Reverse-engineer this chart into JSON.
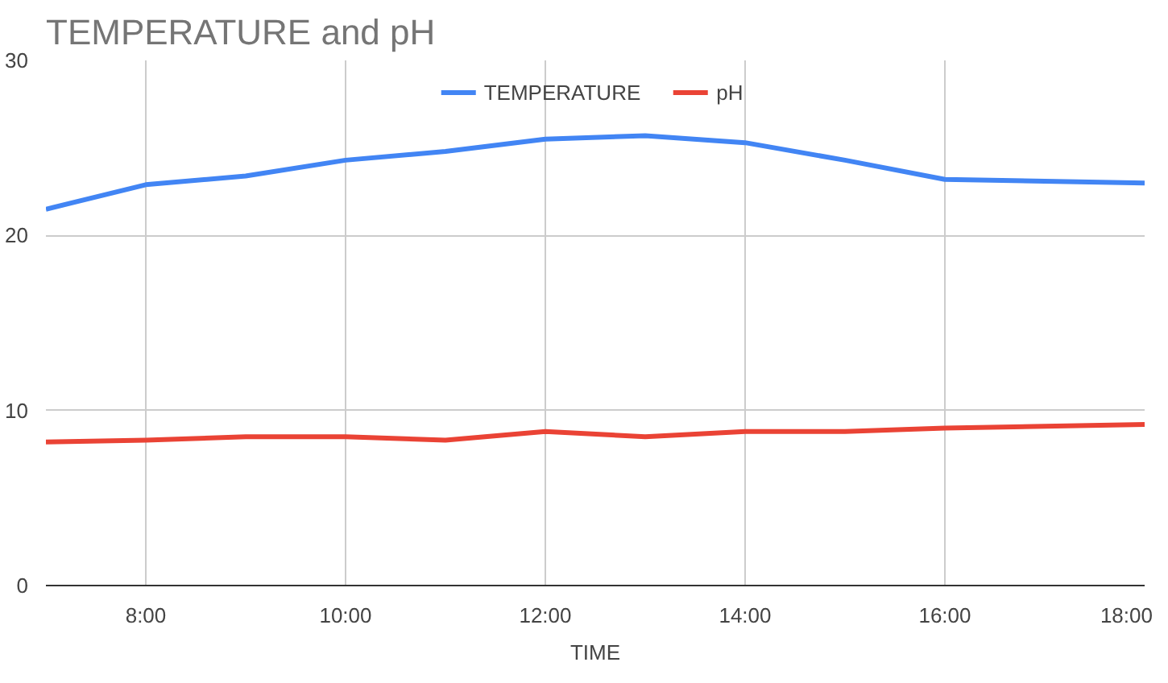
{
  "chart_data": {
    "type": "line",
    "title": "TEMPERATURE and pH",
    "xlabel": "TIME",
    "x": [
      7,
      8,
      9,
      10,
      11,
      12,
      13,
      14,
      15,
      16,
      17,
      18
    ],
    "series": [
      {
        "name": "TEMPERATURE",
        "color": "#4285f4",
        "values": [
          21.5,
          22.9,
          23.4,
          24.3,
          24.8,
          25.5,
          25.7,
          25.3,
          24.3,
          23.2,
          23.1,
          23.0
        ]
      },
      {
        "name": "pH",
        "color": "#ea4335",
        "values": [
          8.2,
          8.3,
          8.5,
          8.5,
          8.3,
          8.8,
          8.5,
          8.8,
          8.8,
          9.0,
          9.1,
          9.2
        ]
      }
    ],
    "xlim": [
      7,
      18
    ],
    "ylim": [
      0,
      30
    ],
    "xticks": [
      {
        "value": 8,
        "label": "8:00"
      },
      {
        "value": 10,
        "label": "10:00"
      },
      {
        "value": 12,
        "label": "12:00"
      },
      {
        "value": 14,
        "label": "14:00"
      },
      {
        "value": 16,
        "label": "16:00"
      },
      {
        "value": 18,
        "label": "18:00"
      }
    ],
    "yticks": [
      0,
      10,
      20,
      30
    ],
    "grid": true,
    "legend": "top",
    "marker": "none",
    "line_style": "solid"
  }
}
